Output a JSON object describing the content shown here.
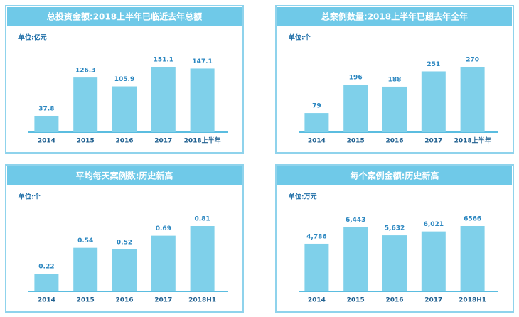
{
  "chart_data": [
    {
      "type": "bar",
      "title": "总投资金额:2018上半年已临近去年总额",
      "unit": "单位:亿元",
      "categories": [
        "2014",
        "2015",
        "2016",
        "2017",
        "2018上半年"
      ],
      "values": [
        37.8,
        126.3,
        105.9,
        151.1,
        147.1
      ],
      "color": "#7fd0ea"
    },
    {
      "type": "bar",
      "title": "总案例数量:2018上半年已超去年全年",
      "unit": "单位:个",
      "categories": [
        "2014",
        "2015",
        "2016",
        "2017",
        "2018上半年"
      ],
      "values": [
        79,
        196,
        188,
        251,
        270
      ],
      "color": "#7fd0ea"
    },
    {
      "type": "bar",
      "title": "平均每天案例数:历史新高",
      "unit": "单位:个",
      "categories": [
        "2014",
        "2015",
        "2016",
        "2017",
        "2018H1"
      ],
      "values": [
        0.22,
        0.54,
        0.52,
        0.69,
        0.81
      ],
      "color": "#7fd0ea"
    },
    {
      "type": "bar",
      "title": "每个案例金额:历史新高",
      "unit": "单位:万元",
      "categories": [
        "2014",
        "2015",
        "2016",
        "2017",
        "2018H1"
      ],
      "values": [
        4786,
        6443,
        5632,
        6021,
        6566
      ],
      "value_labels": [
        "4,786",
        "6,443",
        "5,632",
        "6,021",
        "6566"
      ],
      "color": "#7fd0ea"
    }
  ]
}
